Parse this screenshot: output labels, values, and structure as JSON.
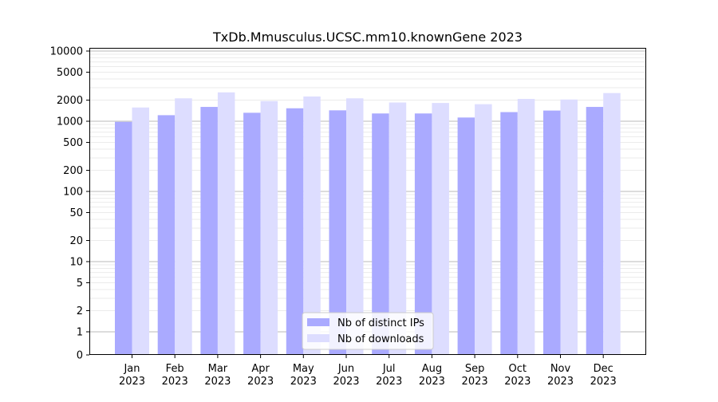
{
  "chart_data": {
    "type": "bar",
    "title": "TxDb.Mmusculus.UCSC.mm10.knownGene 2023",
    "xlabel": "",
    "ylabel": "",
    "y_scale": "log (0 shown at bottom)",
    "ylim": [
      0,
      10000
    ],
    "y_ticks": [
      0,
      1,
      2,
      5,
      10,
      20,
      50,
      100,
      200,
      500,
      1000,
      2000,
      5000,
      10000
    ],
    "y_tick_labels": [
      "0",
      "1",
      "2",
      "5",
      "10",
      "20",
      "50",
      "100",
      "200",
      "500",
      "1000",
      "2000",
      "5000",
      "10000"
    ],
    "grid": true,
    "legend_position": "bottom-center",
    "categories": [
      "Jan\n2023",
      "Feb\n2023",
      "Mar\n2023",
      "Apr\n2023",
      "May\n2023",
      "Jun\n2023",
      "Jul\n2023",
      "Aug\n2023",
      "Sep\n2023",
      "Oct\n2023",
      "Nov\n2023",
      "Dec\n2023"
    ],
    "category_month": [
      "Jan",
      "Feb",
      "Mar",
      "Apr",
      "May",
      "Jun",
      "Jul",
      "Aug",
      "Sep",
      "Oct",
      "Nov",
      "Dec"
    ],
    "category_year": [
      "2023",
      "2023",
      "2023",
      "2023",
      "2023",
      "2023",
      "2023",
      "2023",
      "2023",
      "2023",
      "2023",
      "2023"
    ],
    "series": [
      {
        "name": "Nb of distinct IPs",
        "color": "#aaaaff",
        "values": [
          980,
          1220,
          1600,
          1320,
          1530,
          1430,
          1290,
          1290,
          1130,
          1350,
          1420,
          1600
        ]
      },
      {
        "name": "Nb of downloads",
        "color": "#ddddff",
        "values": [
          1570,
          2120,
          2580,
          1940,
          2250,
          2120,
          1850,
          1820,
          1750,
          2080,
          2040,
          2520
        ]
      }
    ]
  }
}
